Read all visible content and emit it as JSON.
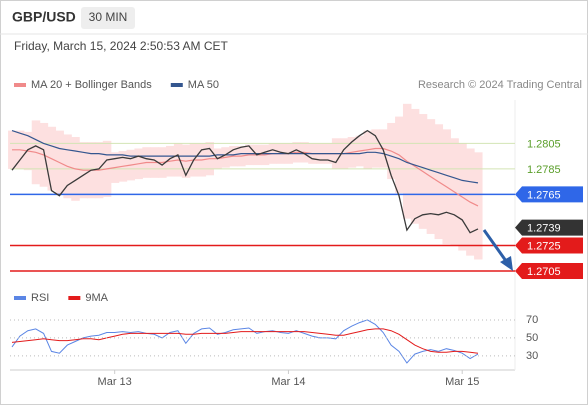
{
  "header": {
    "title": "GBP/USD",
    "timeframe": "30 MIN",
    "timestamp": "Friday, March 15, 2024 2:50:53 AM CET",
    "source": "Research © 2024 Trading Central"
  },
  "chart_data": [
    {
      "type": "line",
      "color": "#3a3a3a",
      "categories": [
        null,
        null,
        null,
        null,
        null,
        null,
        null,
        null,
        null,
        null,
        null,
        null,
        null,
        "Mar 13",
        null,
        null,
        null,
        null,
        null,
        null,
        null,
        null,
        null,
        null,
        null,
        null,
        null,
        null,
        null,
        null,
        null,
        null,
        null,
        null,
        null,
        "Mar 14",
        null,
        null,
        null,
        null,
        null,
        null,
        null,
        null,
        null,
        null,
        null,
        null,
        null,
        null,
        null,
        null,
        null,
        null,
        null,
        null,
        null,
        "Mar 15",
        null,
        null
      ],
      "values": [
        1.2784,
        1.2792,
        1.28,
        1.2803,
        1.28,
        1.2768,
        1.2764,
        1.2772,
        1.2776,
        1.278,
        1.2784,
        1.2785,
        1.2792,
        1.2793,
        1.2794,
        1.2793,
        1.2795,
        1.2793,
        1.2792,
        1.2788,
        1.2793,
        1.2796,
        1.278,
        1.2792,
        1.28,
        1.2801,
        1.2793,
        1.2796,
        1.28,
        1.2802,
        1.2803,
        1.2796,
        1.2798,
        1.28,
        1.2798,
        1.2797,
        1.28,
        1.2797,
        1.2793,
        1.2792,
        1.2792,
        1.279,
        1.28,
        1.2806,
        1.2811,
        1.2815,
        1.2811,
        1.28,
        1.278,
        1.2764,
        1.2737,
        1.2746,
        1.2749,
        1.275,
        1.2749,
        1.2751,
        1.2749,
        1.2745,
        1.2735,
        1.2738
      ],
      "series": [
        {
          "name": "MA 20 + Bollinger Bands",
          "color": "#f08a8a",
          "band_color": "#fde0e0",
          "values": [
            1.28,
            1.28,
            1.2799,
            1.2798,
            1.2796,
            1.2793,
            1.279,
            1.2787,
            1.2785,
            1.2784,
            1.2784,
            1.2784,
            1.2785,
            1.2786,
            1.2787,
            1.2788,
            1.2789,
            1.279,
            1.279,
            1.279,
            1.2791,
            1.2792,
            1.2791,
            1.2792,
            1.2792,
            1.2793,
            1.2793,
            1.2794,
            1.2795,
            1.2795,
            1.2796,
            1.2796,
            1.2796,
            1.2797,
            1.2797,
            1.2797,
            1.2798,
            1.2798,
            1.2797,
            1.2797,
            1.2797,
            1.2797,
            1.2797,
            1.2798,
            1.2799,
            1.28,
            1.2801,
            1.2801,
            1.2799,
            1.2796,
            1.2791,
            1.2787,
            1.2783,
            1.2779,
            1.2775,
            1.2771,
            1.2767,
            1.2763,
            1.2759,
            1.2756
          ],
          "upper": [
            1.2815,
            1.2815,
            1.2814,
            1.2823,
            1.2821,
            1.2818,
            1.2815,
            1.2812,
            1.281,
            1.2806,
            1.2806,
            1.2806,
            1.2807,
            1.2798,
            1.2799,
            1.28,
            1.2801,
            1.2802,
            1.2802,
            1.2802,
            1.2803,
            1.2805,
            1.2804,
            1.2805,
            1.2805,
            1.2806,
            1.2801,
            1.2802,
            1.2803,
            1.2803,
            1.2804,
            1.2804,
            1.2804,
            1.2805,
            1.2805,
            1.2805,
            1.2806,
            1.2806,
            1.2805,
            1.2805,
            1.2805,
            1.2809,
            1.2809,
            1.281,
            1.2811,
            1.2815,
            1.2816,
            1.2816,
            1.2821,
            1.2826,
            1.2836,
            1.2832,
            1.2828,
            1.2824,
            1.282,
            1.2816,
            1.2809,
            1.2805,
            1.2801,
            1.2798
          ],
          "lower": [
            1.2785,
            1.2785,
            1.2784,
            1.2773,
            1.2771,
            1.2768,
            1.2765,
            1.2762,
            1.276,
            1.2762,
            1.2762,
            1.2762,
            1.2763,
            1.2774,
            1.2775,
            1.2776,
            1.2777,
            1.2778,
            1.2778,
            1.2778,
            1.2779,
            1.2779,
            1.2778,
            1.2779,
            1.2779,
            1.278,
            1.2785,
            1.2786,
            1.2787,
            1.2787,
            1.2788,
            1.2788,
            1.2788,
            1.2789,
            1.2789,
            1.2789,
            1.279,
            1.279,
            1.2789,
            1.2789,
            1.2789,
            1.2785,
            1.2785,
            1.2786,
            1.2787,
            1.2785,
            1.2786,
            1.2786,
            1.2777,
            1.2766,
            1.2746,
            1.2742,
            1.2738,
            1.2734,
            1.273,
            1.2726,
            1.2725,
            1.2721,
            1.2717,
            1.2714
          ]
        },
        {
          "name": "MA 50",
          "color": "#34568f",
          "values": [
            1.2815,
            1.2813,
            1.2811,
            1.2808,
            1.2805,
            1.2803,
            1.2801,
            1.28,
            1.2799,
            1.2798,
            1.2797,
            1.2797,
            1.2796,
            1.2796,
            1.2796,
            1.2795,
            1.2795,
            1.2795,
            1.2795,
            1.2795,
            1.2795,
            1.2795,
            1.2795,
            1.2795,
            1.2795,
            1.2795,
            1.2796,
            1.2796,
            1.2796,
            1.2797,
            1.2797,
            1.2797,
            1.2797,
            1.2797,
            1.2797,
            1.2797,
            1.2797,
            1.2797,
            1.2797,
            1.2797,
            1.2797,
            1.2797,
            1.2797,
            1.2797,
            1.2797,
            1.2798,
            1.2798,
            1.2797,
            1.2795,
            1.2793,
            1.279,
            1.2788,
            1.2786,
            1.2784,
            1.2782,
            1.278,
            1.2778,
            1.2776,
            1.2775,
            1.2774
          ]
        }
      ],
      "ylim": [
        1.2694,
        1.2839
      ],
      "levels": [
        {
          "value": 1.2805,
          "color": "#5a9e2a",
          "line_color": "#d3e4b4",
          "box": false
        },
        {
          "value": 1.2785,
          "color": "#5a9e2a",
          "line_color": "#d3e4b4",
          "box": false
        },
        {
          "value": 1.2765,
          "color": "#2f67e8",
          "line_color": "#2f67e8",
          "box": true
        },
        {
          "value": 1.2739,
          "color": "#333333",
          "line_color": null,
          "box": true
        },
        {
          "value": 1.2725,
          "color": "#e31b1b",
          "line_color": "#e31b1b",
          "box": true
        },
        {
          "value": 1.2705,
          "color": "#e31b1b",
          "line_color": "#e31b1b",
          "box": true
        }
      ]
    },
    {
      "type": "line",
      "series": [
        {
          "name": "RSI",
          "color": "#5b86e5",
          "values": [
            40,
            52,
            58,
            60,
            55,
            35,
            33,
            42,
            46,
            50,
            52,
            53,
            56,
            56,
            57,
            56,
            57,
            55,
            54,
            50,
            56,
            58,
            44,
            55,
            60,
            61,
            54,
            56,
            59,
            60,
            61,
            55,
            57,
            58,
            56,
            55,
            58,
            55,
            52,
            50,
            50,
            49,
            58,
            63,
            67,
            70,
            65,
            56,
            42,
            35,
            22,
            32,
            35,
            37,
            35,
            38,
            36,
            33,
            27,
            32
          ]
        },
        {
          "name": "9MA",
          "color": "#e31b1b",
          "values": [
            45,
            46,
            47,
            48,
            49,
            48,
            47,
            47,
            48,
            49,
            49,
            48,
            50,
            52,
            54,
            55,
            55,
            55,
            55,
            55,
            55,
            55,
            54,
            54,
            55,
            55,
            55,
            55,
            56,
            57,
            57,
            57,
            57,
            57,
            57,
            57,
            57,
            57,
            56,
            55,
            54,
            53,
            53,
            55,
            57,
            59,
            60,
            60,
            58,
            54,
            48,
            42,
            38,
            35,
            34,
            34,
            35,
            35,
            34,
            33
          ]
        }
      ],
      "ylim": [
        12,
        90
      ],
      "yticks": [
        30,
        50,
        70
      ],
      "grid": true
    }
  ]
}
